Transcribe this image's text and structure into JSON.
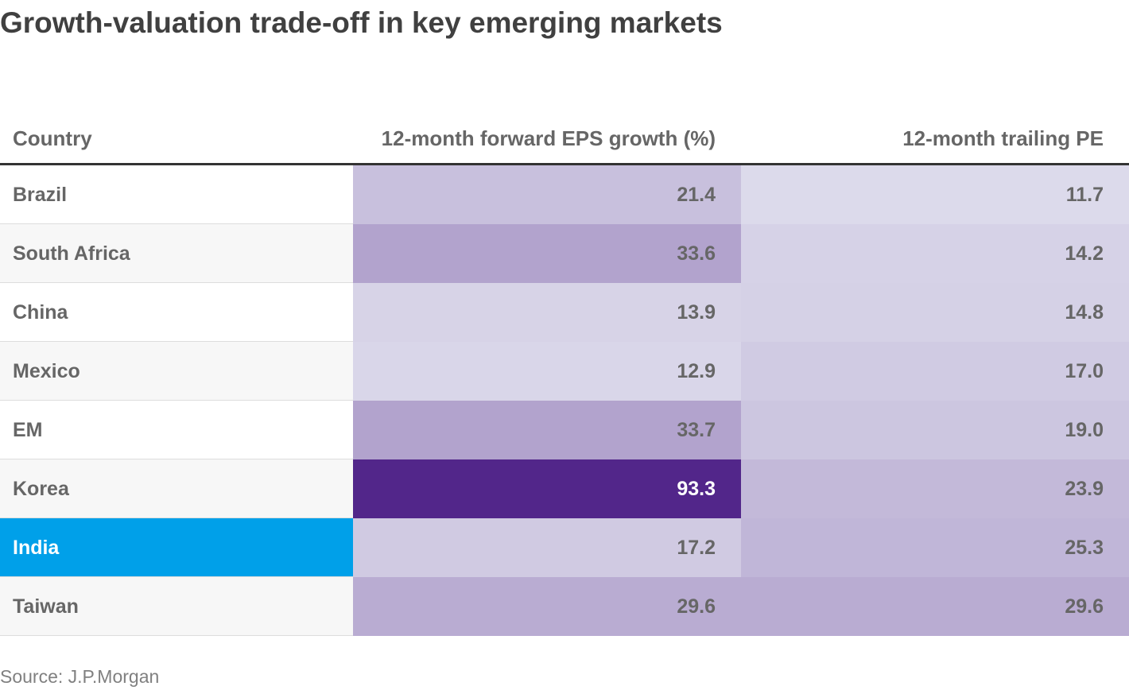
{
  "title": "Growth-valuation trade-off in key emerging markets",
  "source": "Source: J.P.Morgan",
  "chart_data": {
    "type": "table",
    "columns": [
      "Country",
      "12-month forward EPS growth (%)",
      "12-month trailing PE"
    ],
    "rows": [
      {
        "country": "Brazil",
        "eps": "21.4",
        "pe": "11.7"
      },
      {
        "country": "South Africa",
        "eps": "33.6",
        "pe": "14.2"
      },
      {
        "country": "China",
        "eps": "13.9",
        "pe": "14.8"
      },
      {
        "country": "Mexico",
        "eps": "12.9",
        "pe": "17.0"
      },
      {
        "country": "EM",
        "eps": "33.7",
        "pe": "19.0"
      },
      {
        "country": "Korea",
        "eps": "93.3",
        "pe": "23.9"
      },
      {
        "country": "India",
        "eps": "17.2",
        "pe": "25.3"
      },
      {
        "country": "Taiwan",
        "eps": "29.6",
        "pe": "29.6"
      }
    ],
    "highlighted_row": "India",
    "colors": {
      "highlight": "#00a0e9",
      "heat_low": "#dcdaeb",
      "heat_high": "#52268a"
    }
  }
}
